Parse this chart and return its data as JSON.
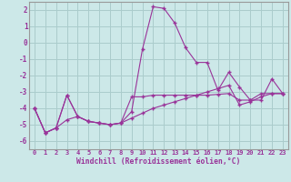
{
  "xlabel": "Windchill (Refroidissement éolien,°C)",
  "background_color": "#cce8e8",
  "grid_color": "#aacccc",
  "line_color": "#993399",
  "x": [
    0,
    1,
    2,
    3,
    4,
    5,
    6,
    7,
    8,
    9,
    10,
    11,
    12,
    13,
    14,
    15,
    16,
    17,
    18,
    19,
    20,
    21,
    22,
    23
  ],
  "line1": [
    -4.0,
    -5.5,
    -5.2,
    -3.2,
    -4.5,
    -4.8,
    -4.9,
    -5.0,
    -4.9,
    -4.2,
    -0.4,
    2.2,
    2.1,
    1.2,
    -0.3,
    -1.2,
    -1.2,
    -2.9,
    -1.8,
    -2.7,
    -3.5,
    -3.5,
    -2.2,
    -3.1
  ],
  "line2": [
    -4.0,
    -5.5,
    -5.2,
    -3.2,
    -4.5,
    -4.8,
    -4.9,
    -5.0,
    -4.9,
    -3.3,
    -3.3,
    -3.2,
    -3.2,
    -3.2,
    -3.2,
    -3.2,
    -3.2,
    -3.15,
    -3.1,
    -3.5,
    -3.5,
    -3.1,
    -3.1,
    -3.1
  ],
  "line3": [
    -4.0,
    -5.5,
    -5.2,
    -4.7,
    -4.5,
    -4.8,
    -4.9,
    -5.0,
    -4.9,
    -4.6,
    -4.3,
    -4.0,
    -3.8,
    -3.6,
    -3.4,
    -3.2,
    -3.0,
    -2.8,
    -2.6,
    -3.8,
    -3.6,
    -3.3,
    -3.1,
    -3.1
  ],
  "ylim": [
    -6.5,
    2.5
  ],
  "yticks": [
    -6,
    -5,
    -4,
    -3,
    -2,
    -1,
    0,
    1,
    2
  ],
  "xticks": [
    0,
    1,
    2,
    3,
    4,
    5,
    6,
    7,
    8,
    9,
    10,
    11,
    12,
    13,
    14,
    15,
    16,
    17,
    18,
    19,
    20,
    21,
    22,
    23
  ],
  "figsize": [
    3.2,
    2.0
  ],
  "dpi": 100
}
